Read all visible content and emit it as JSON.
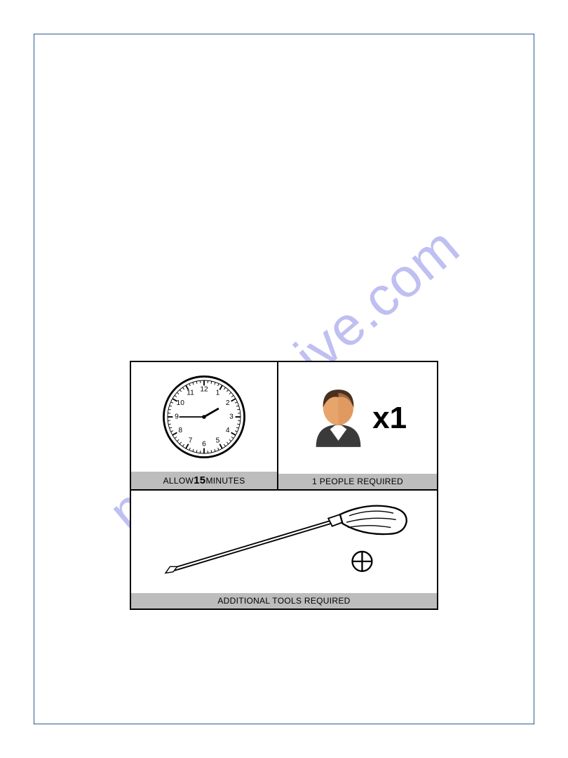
{
  "watermark_text": "manualshive.com",
  "colors": {
    "frame_border": "#2a5a8f",
    "watermark": "#8b8be8",
    "caption_bg": "#bdbdbd",
    "cell_border": "#000000",
    "face": "#e8a56b",
    "suit": "#3a3a3a"
  },
  "time_cell": {
    "caption_prefix": "ALLOW",
    "caption_minutes": "15",
    "caption_suffix": "MINUTES",
    "clock": {
      "numbers": [
        "12",
        "1",
        "2",
        "3",
        "4",
        "5",
        "6",
        "7",
        "8",
        "9",
        "10",
        "11"
      ],
      "hour_hand_angle": 60,
      "minute_hand_angle": 270
    }
  },
  "people_cell": {
    "caption": "1 PEOPLE REQUIRED",
    "multiplier_text": "x1"
  },
  "tools_cell": {
    "caption": "ADDITIONAL TOOLS REQUIRED"
  }
}
